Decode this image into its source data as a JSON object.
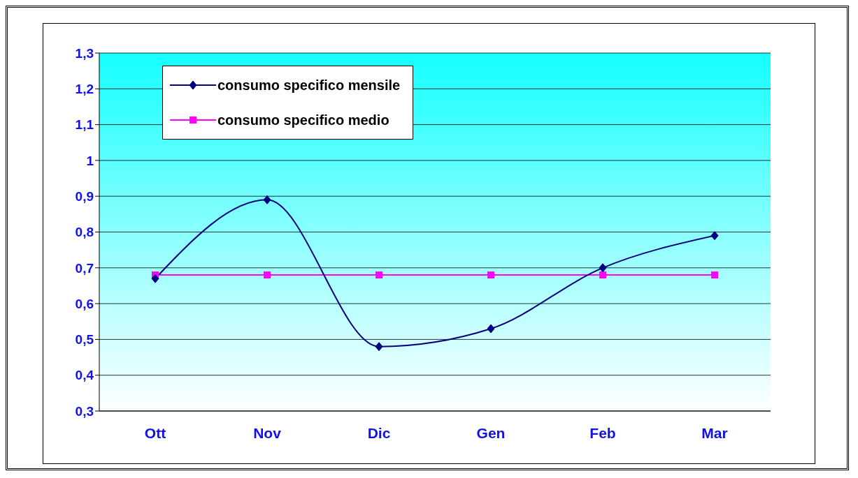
{
  "chart_data": {
    "type": "line",
    "categories": [
      "Ott",
      "Nov",
      "Dic",
      "Gen",
      "Feb",
      "Mar"
    ],
    "series": [
      {
        "name": "consumo specifico mensile",
        "color": "#000080",
        "marker": "diamond",
        "values": [
          0.67,
          0.89,
          0.48,
          0.53,
          0.7,
          0.79
        ]
      },
      {
        "name": "consumo specifico medio",
        "color": "#ff00ff",
        "marker": "square",
        "values": [
          0.68,
          0.68,
          0.68,
          0.68,
          0.68,
          0.68
        ]
      }
    ],
    "ylim": [
      0.3,
      1.3
    ],
    "yticks": [
      {
        "value": 0.3,
        "label": "0,3"
      },
      {
        "value": 0.4,
        "label": "0,4"
      },
      {
        "value": 0.5,
        "label": "0,5"
      },
      {
        "value": 0.6,
        "label": "0,6"
      },
      {
        "value": 0.7,
        "label": "0,7"
      },
      {
        "value": 0.8,
        "label": "0,8"
      },
      {
        "value": 0.9,
        "label": "0,9"
      },
      {
        "value": 1,
        "label": "1"
      },
      {
        "value": 1.1,
        "label": "1,1"
      },
      {
        "value": 1.2,
        "label": "1,2"
      },
      {
        "value": 1.3,
        "label": "1,3"
      }
    ],
    "grid": "y",
    "legend": "top left",
    "line_style": "solid"
  }
}
